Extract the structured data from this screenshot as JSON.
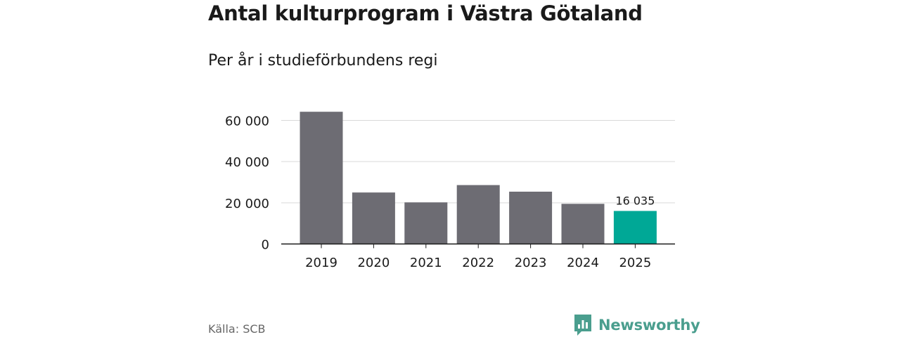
{
  "header": {
    "title": "Antal kulturprogram i Västra Götaland",
    "subtitle": "Per år i studieförbundens regi"
  },
  "footer": {
    "source": "Källa: SCB",
    "brand": "Newsworthy"
  },
  "colors": {
    "bar": "#6d6c73",
    "highlight": "#00a896",
    "grid": "#d9d9d9",
    "axis": "#1a1a1a",
    "brand": "#4a9e8e"
  },
  "chart_data": {
    "type": "bar",
    "categories": [
      "2019",
      "2020",
      "2021",
      "2022",
      "2023",
      "2024",
      "2025"
    ],
    "values": [
      64200,
      25000,
      20200,
      28600,
      25400,
      19500,
      16035
    ],
    "ylim": [
      0,
      60000
    ],
    "yticks": [
      0,
      20000,
      40000,
      60000
    ],
    "ytick_labels": [
      "0",
      "20 000",
      "40 000",
      "60 000"
    ],
    "highlight_index": 6,
    "data_label": "16 035",
    "grid": true,
    "xlabel": "",
    "ylabel": ""
  }
}
